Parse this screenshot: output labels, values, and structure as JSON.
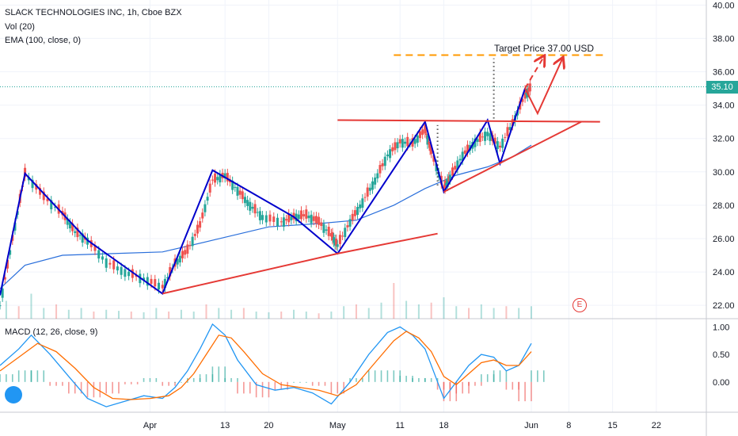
{
  "legend": {
    "symbol": "SLACK TECHNOLOGIES INC, 1h, Cboe BZX",
    "volume": "Vol (20)",
    "ema": "EMA (100, close, 0)",
    "macd": "MACD (12, 26, close, 9)"
  },
  "annotations": {
    "target_label": "Target Price 37.00 USD",
    "current_price": "35.10",
    "earnings_marker": "E"
  },
  "colors": {
    "up": "#26a69a",
    "down": "#ef5350",
    "zigzag": "#0000cc",
    "trendline": "#e53935",
    "target_line": "#ff9800",
    "ema": "#2a6fdb",
    "macd_line": "#2196f3",
    "signal_line": "#ff6d00"
  },
  "chart_data": [
    {
      "type": "line",
      "x_ticks": [
        "Apr",
        "13",
        "20",
        "May",
        "11",
        "18",
        "Jun",
        "8",
        "15",
        "22"
      ],
      "x_tick_days": [
        1,
        13,
        20,
        31,
        41,
        48,
        62,
        68,
        75,
        82
      ],
      "y_ticks": [
        "40.00",
        "38.00",
        "36.00",
        "34.00",
        "32.00",
        "30.00",
        "28.00",
        "26.00",
        "24.00",
        "22.00"
      ],
      "ylim": [
        21.2,
        40.3
      ],
      "xlim": [
        -23,
        90
      ],
      "zigzag": [
        [
          -23,
          22.6
        ],
        [
          -19,
          29.9
        ],
        [
          -9,
          25.9
        ],
        [
          3,
          22.7
        ],
        [
          11,
          30.1
        ],
        [
          24,
          27.3
        ],
        [
          31,
          25.1
        ],
        [
          45,
          33.0
        ],
        [
          48,
          28.8
        ],
        [
          55,
          33.1
        ],
        [
          57,
          30.5
        ],
        [
          61,
          35.0
        ]
      ],
      "resistance": [
        [
          31,
          33.1
        ],
        [
          73,
          33.0
        ]
      ],
      "support_upper": [
        [
          48,
          28.8
        ],
        [
          70,
          33.0
        ]
      ],
      "support_lower": [
        [
          3,
          22.7
        ],
        [
          31,
          25.1
        ],
        [
          47,
          26.3
        ]
      ],
      "target_price": 37.0,
      "current_price": 35.1,
      "price_path": [
        [
          -23,
          22.0
        ],
        [
          -21,
          26.0
        ],
        [
          -19,
          29.9
        ],
        [
          -16,
          28.5
        ],
        [
          -13,
          27.5
        ],
        [
          -11,
          26.4
        ],
        [
          -9,
          25.9
        ],
        [
          -6,
          24.6
        ],
        [
          -3,
          24.0
        ],
        [
          0,
          23.6
        ],
        [
          3,
          23.1
        ],
        [
          5,
          24.5
        ],
        [
          7,
          25.3
        ],
        [
          9,
          26.8
        ],
        [
          11,
          29.5
        ],
        [
          13,
          29.8
        ],
        [
          15,
          28.9
        ],
        [
          17,
          28.0
        ],
        [
          19,
          27.3
        ],
        [
          22,
          27.0
        ],
        [
          24,
          27.3
        ],
        [
          26,
          27.4
        ],
        [
          28,
          27.0
        ],
        [
          30,
          26.2
        ],
        [
          31,
          25.6
        ],
        [
          33,
          27.0
        ],
        [
          35,
          28.2
        ],
        [
          37,
          29.5
        ],
        [
          39,
          31.0
        ],
        [
          41,
          31.8
        ],
        [
          43,
          31.7
        ],
        [
          45,
          32.5
        ],
        [
          46,
          31.2
        ],
        [
          48,
          29.0
        ],
        [
          49,
          29.7
        ],
        [
          51,
          31.0
        ],
        [
          53,
          31.8
        ],
        [
          55,
          32.3
        ],
        [
          57,
          31.5
        ],
        [
          59,
          32.9
        ],
        [
          61,
          34.6
        ],
        [
          62,
          35.1
        ]
      ],
      "ema_path": [
        [
          -23,
          23.0
        ],
        [
          -19,
          24.4
        ],
        [
          -13,
          25.0
        ],
        [
          -5,
          25.1
        ],
        [
          3,
          25.2
        ],
        [
          11,
          25.9
        ],
        [
          20,
          26.7
        ],
        [
          28,
          26.9
        ],
        [
          34,
          27.1
        ],
        [
          40,
          28.0
        ],
        [
          45,
          29.0
        ],
        [
          50,
          29.8
        ],
        [
          55,
          30.3
        ],
        [
          59,
          30.9
        ],
        [
          62,
          31.6
        ]
      ]
    },
    {
      "type": "bar",
      "name": "Vol (20)",
      "x": [
        -22,
        -20,
        -18,
        -16,
        -14,
        -12,
        -10,
        -8,
        -6,
        -4,
        -2,
        0,
        2,
        4,
        6,
        8,
        10,
        12,
        14,
        16,
        18,
        20,
        22,
        24,
        26,
        28,
        30,
        32,
        34,
        36,
        38,
        40,
        42,
        44,
        46,
        48,
        50,
        52,
        54,
        56,
        58,
        60,
        62
      ],
      "values": [
        0.5,
        0.35,
        0.7,
        0.3,
        0.4,
        0.25,
        0.3,
        0.2,
        0.25,
        0.22,
        0.2,
        0.18,
        0.3,
        0.2,
        0.25,
        0.2,
        0.4,
        0.3,
        0.25,
        0.3,
        0.2,
        0.18,
        0.2,
        0.25,
        0.2,
        0.15,
        0.2,
        0.35,
        0.4,
        0.3,
        0.45,
        1.0,
        0.5,
        0.4,
        0.45,
        0.6,
        0.35,
        0.3,
        0.4,
        0.3,
        0.35,
        0.3,
        0.35
      ]
    },
    {
      "type": "line",
      "name": "MACD (12, 26, close, 9)",
      "y_ticks": [
        "1.00",
        "0.50",
        "0.00"
      ],
      "ylim": [
        -0.55,
        1.15
      ],
      "macd": [
        [
          -23,
          0.3
        ],
        [
          -20,
          0.6
        ],
        [
          -18,
          0.85
        ],
        [
          -15,
          0.5
        ],
        [
          -12,
          0.1
        ],
        [
          -9,
          -0.3
        ],
        [
          -6,
          -0.45
        ],
        [
          -3,
          -0.35
        ],
        [
          0,
          -0.25
        ],
        [
          3,
          -0.3
        ],
        [
          5,
          -0.1
        ],
        [
          7,
          0.2
        ],
        [
          9,
          0.6
        ],
        [
          11,
          1.05
        ],
        [
          13,
          0.85
        ],
        [
          15,
          0.4
        ],
        [
          18,
          -0.05
        ],
        [
          21,
          -0.15
        ],
        [
          24,
          -0.1
        ],
        [
          27,
          -0.2
        ],
        [
          30,
          -0.4
        ],
        [
          33,
          0.0
        ],
        [
          36,
          0.5
        ],
        [
          39,
          0.9
        ],
        [
          41,
          1.0
        ],
        [
          43,
          0.85
        ],
        [
          45,
          0.6
        ],
        [
          47,
          0.0
        ],
        [
          48,
          -0.3
        ],
        [
          50,
          0.0
        ],
        [
          52,
          0.3
        ],
        [
          54,
          0.5
        ],
        [
          56,
          0.45
        ],
        [
          58,
          0.2
        ],
        [
          60,
          0.3
        ],
        [
          62,
          0.7
        ]
      ],
      "signal": [
        [
          -23,
          0.2
        ],
        [
          -20,
          0.45
        ],
        [
          -17,
          0.7
        ],
        [
          -14,
          0.55
        ],
        [
          -11,
          0.25
        ],
        [
          -8,
          -0.1
        ],
        [
          -5,
          -0.3
        ],
        [
          -2,
          -0.32
        ],
        [
          1,
          -0.3
        ],
        [
          4,
          -0.25
        ],
        [
          6,
          -0.1
        ],
        [
          8,
          0.15
        ],
        [
          10,
          0.5
        ],
        [
          12,
          0.85
        ],
        [
          14,
          0.8
        ],
        [
          16,
          0.55
        ],
        [
          19,
          0.15
        ],
        [
          22,
          -0.05
        ],
        [
          25,
          -0.1
        ],
        [
          28,
          -0.15
        ],
        [
          31,
          -0.25
        ],
        [
          34,
          -0.05
        ],
        [
          37,
          0.35
        ],
        [
          40,
          0.75
        ],
        [
          42,
          0.92
        ],
        [
          44,
          0.8
        ],
        [
          46,
          0.55
        ],
        [
          48,
          0.1
        ],
        [
          50,
          -0.05
        ],
        [
          52,
          0.15
        ],
        [
          54,
          0.35
        ],
        [
          56,
          0.4
        ],
        [
          58,
          0.3
        ],
        [
          60,
          0.3
        ],
        [
          62,
          0.55
        ]
      ]
    }
  ]
}
